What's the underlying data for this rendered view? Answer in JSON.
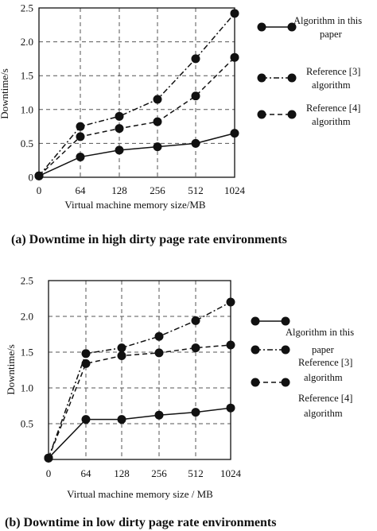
{
  "chart_data": [
    {
      "type": "line",
      "panel": "a",
      "caption": "(a) Downtime in high dirty page rate environments",
      "xlabel": "Virtual machine memory size/MB",
      "ylabel": "Downtime/s",
      "categories": [
        "0",
        "64",
        "128",
        "256",
        "512",
        "1024"
      ],
      "ylim": [
        0,
        2.5
      ],
      "yticks": [
        0,
        0.5,
        1.0,
        1.5,
        2.0,
        2.5
      ],
      "ytick_labels": [
        "0",
        "0.5",
        "1.0",
        "1.5",
        "2.0",
        "2.5"
      ],
      "grid": true,
      "legend_position": "right",
      "series": [
        {
          "name": "Algorithm in this paper",
          "dash": "solid",
          "values": [
            0.02,
            0.3,
            0.4,
            0.45,
            0.5,
            0.65
          ]
        },
        {
          "name": "Reference [3] algorithm",
          "dash": "dashdot",
          "values": [
            0.02,
            0.75,
            0.9,
            1.15,
            1.75,
            2.42
          ]
        },
        {
          "name": "Reference [4] algorithm",
          "dash": "dashed",
          "values": [
            0.02,
            0.6,
            0.72,
            0.82,
            1.2,
            1.77
          ]
        }
      ]
    },
    {
      "type": "line",
      "panel": "b",
      "caption": "(b) Downtime in low dirty page rate environments",
      "xlabel": "Virtual machine memory size / MB",
      "ylabel": "Downtime/s",
      "categories": [
        "0",
        "64",
        "128",
        "256",
        "512",
        "1024"
      ],
      "ylim": [
        0,
        2.5
      ],
      "yticks": [
        0.5,
        1.0,
        1.5,
        2.0,
        2.5
      ],
      "ytick_labels": [
        "0.5",
        "1.0",
        "1.5",
        "2.0",
        "2.5"
      ],
      "grid": true,
      "legend_position": "right",
      "series": [
        {
          "name": "Algorithm in this paper",
          "dash": "solid",
          "values": [
            0.02,
            0.56,
            0.56,
            0.62,
            0.66,
            0.72
          ]
        },
        {
          "name": "Reference [3] algorithm",
          "dash": "dashdot",
          "values": [
            0.02,
            1.48,
            1.56,
            1.72,
            1.94,
            2.2
          ]
        },
        {
          "name": "Reference [4] algorithm",
          "dash": "dashed",
          "values": [
            0.02,
            1.34,
            1.45,
            1.49,
            1.56,
            1.6
          ]
        }
      ]
    }
  ],
  "legend": {
    "a": [
      {
        "line1": "Algorithm in this",
        "line2": "paper"
      },
      {
        "line1": "Reference [3]",
        "line2": "algorithm"
      },
      {
        "line1": "Reference [4]",
        "line2": "algorithm"
      }
    ],
    "b": [
      {
        "line1": "Algorithm in this",
        "line2": "paper"
      },
      {
        "line1": "Reference [3]",
        "line2": "algorithm"
      },
      {
        "line1": "Reference [4]",
        "line2": "algorithm"
      }
    ]
  }
}
